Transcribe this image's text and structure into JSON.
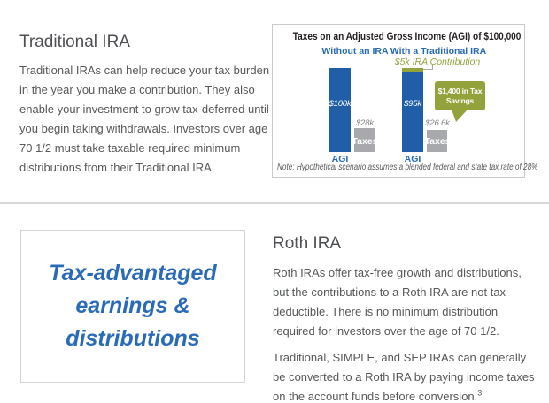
{
  "traditional_section": {
    "heading": "Traditional IRA",
    "body": "Traditional IRAs can help reduce your tax burden in the year you make a contribution. They also enable your investment to grow tax-deferred until you begin taking withdrawals. Investors over age 70 1/2 must take taxable required minimum distributions from their Traditional IRA."
  },
  "quote_box": {
    "lines": [
      "Tax-advantaged",
      "earnings &",
      "distributions"
    ]
  },
  "roth_section": {
    "heading": "Roth IRA",
    "paragraph1": "Roth IRAs offer tax-free growth and distributions, but the contributions to a Roth IRA are not tax-deductible. There is no minimum distribution required for investors over the age of 70 1/2.",
    "paragraph2": "Traditional, SIMPLE, and SEP IRAs can generally be converted to a Roth IRA by paying income taxes on the account funds before conversion.",
    "footnote_ref": "3"
  },
  "chart_data": {
    "type": "bar",
    "title": "Taxes on an Adjusted Gross Income (AGI) of $100,000",
    "unit": "USD",
    "groups": [
      {
        "label": "Without an IRA",
        "bars": [
          {
            "name": "AGI",
            "value": 100000,
            "value_label": "$100k"
          },
          {
            "name": "Taxes",
            "value": 28000,
            "value_label": "$28k"
          }
        ]
      },
      {
        "label": "With a Traditional IRA",
        "bars": [
          {
            "name": "AGI",
            "value": 95000,
            "value_label": "$95k",
            "cap": {
              "label": "$5k IRA Contribution",
              "value": 5000
            }
          },
          {
            "name": "Taxes",
            "value": 26600,
            "value_label": "$26.6k"
          }
        ]
      }
    ],
    "callout": {
      "text": "$1,400 in Tax Savings",
      "lines": [
        "$1,400 in Tax",
        "Savings"
      ]
    },
    "note": "Note: Hypothetical scenario assumes a blended federal and state tax rate of 28%",
    "colors": {
      "agi_bar": "#205fa8",
      "taxes_bar": "#a7a9ac",
      "contribution_cap": "#94a23c",
      "callout_bg": "#94a23c",
      "label_blue": "#2a6bb5"
    }
  },
  "colors": {
    "quote_text": "#2a6bb8",
    "heading_text": "#4d4f53",
    "body_text": "#56585a"
  }
}
